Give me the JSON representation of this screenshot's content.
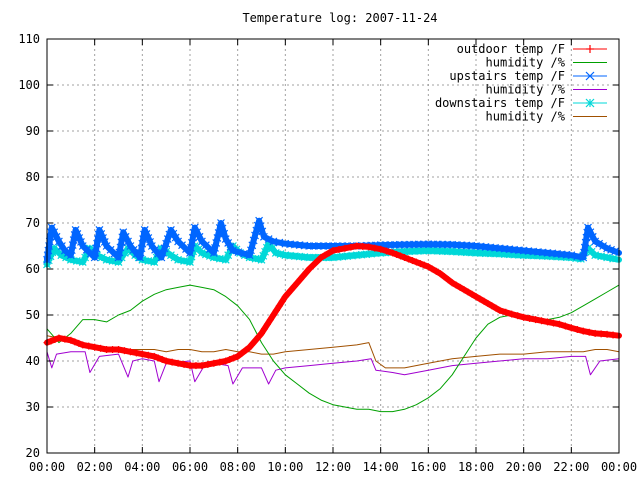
{
  "chart_data": {
    "type": "line",
    "title": "Temperature log: 2007-11-24",
    "xlabel": "",
    "ylabel": "",
    "ylim": [
      20,
      110
    ],
    "yticks": [
      20,
      30,
      40,
      50,
      60,
      70,
      80,
      90,
      100,
      110
    ],
    "xlim_hours": [
      0,
      24
    ],
    "xticks": [
      "00:00",
      "02:00",
      "04:00",
      "06:00",
      "08:00",
      "10:00",
      "12:00",
      "14:00",
      "16:00",
      "18:00",
      "20:00",
      "22:00",
      "00:00"
    ],
    "grid": true,
    "legend_position": "top-right",
    "series": [
      {
        "name": "outdoor temp /F",
        "color": "#ff0000",
        "marker": "plus",
        "x_hours": [
          0,
          0.5,
          1,
          1.5,
          2,
          2.5,
          3,
          3.5,
          4,
          4.5,
          5,
          5.5,
          6,
          6.5,
          7,
          7.5,
          8,
          8.5,
          9,
          9.5,
          10,
          10.5,
          11,
          11.5,
          12,
          12.5,
          13,
          13.5,
          14,
          14.5,
          15,
          15.5,
          16,
          16.5,
          17,
          17.5,
          18,
          18.5,
          19,
          19.5,
          20,
          20.5,
          21,
          21.5,
          22,
          22.5,
          23,
          23.5,
          24
        ],
        "values": [
          44,
          45,
          44.5,
          43.5,
          43,
          42.5,
          42.5,
          42,
          41.5,
          41,
          40,
          39.5,
          39,
          39,
          39.5,
          40,
          41,
          43,
          46,
          50,
          54,
          57,
          60,
          62.5,
          64,
          64.5,
          65,
          64.8,
          64.3,
          63.5,
          62.5,
          61.5,
          60.5,
          59,
          57,
          55.5,
          54,
          52.5,
          51,
          50.2,
          49.5,
          49,
          48.5,
          48,
          47.2,
          46.5,
          46,
          45.8,
          45.5
        ]
      },
      {
        "name": "humidity /%",
        "color": "#00a000",
        "marker": "none",
        "x_hours": [
          0,
          0.5,
          1,
          1.5,
          2,
          2.5,
          3,
          3.5,
          4,
          4.5,
          5,
          5.5,
          6,
          6.5,
          7,
          7.5,
          8,
          8.5,
          9,
          9.5,
          10,
          10.5,
          11,
          11.5,
          12,
          12.5,
          13,
          13.5,
          14,
          14.5,
          15,
          15.5,
          16,
          16.5,
          17,
          17.5,
          18,
          18.5,
          19,
          19.5,
          20,
          20.5,
          21,
          21.5,
          22,
          22.5,
          23,
          23.5,
          24
        ],
        "values": [
          47,
          44,
          46,
          49,
          49,
          48.5,
          50,
          51,
          53,
          54.5,
          55.5,
          56,
          56.5,
          56,
          55.5,
          54,
          52,
          49,
          44,
          40,
          37,
          35,
          33,
          31.5,
          30.5,
          30,
          29.5,
          29.5,
          29,
          29,
          29.5,
          30.5,
          32,
          34,
          37,
          41,
          45,
          48,
          49.5,
          50,
          50,
          49.5,
          49,
          49.5,
          50.5,
          52,
          53.5,
          55,
          56.5
        ]
      },
      {
        "name": "upstairs temp /F",
        "color": "#0066ff",
        "marker": "cross",
        "x_hours": [
          0,
          0.2,
          0.5,
          0.75,
          1,
          1.2,
          1.5,
          2,
          2.2,
          2.5,
          3,
          3.2,
          3.5,
          3.9,
          4.1,
          4.4,
          4.8,
          5.2,
          5.5,
          6.0,
          6.2,
          6.5,
          7,
          7.3,
          7.5,
          7.8,
          8.5,
          8.9,
          9.1,
          9.5,
          10,
          11,
          12,
          13,
          14,
          15,
          16,
          17,
          18,
          19,
          20,
          21,
          22,
          22.5,
          22.7,
          23,
          23.5,
          24
        ],
        "values": [
          62,
          69,
          66,
          64,
          63,
          68.5,
          65,
          62.5,
          68.5,
          65,
          62.5,
          68,
          65,
          62.5,
          68.5,
          65,
          62.5,
          68.5,
          66,
          63.5,
          69,
          66,
          63.5,
          70,
          66.5,
          64,
          63,
          70.5,
          67,
          66,
          65.5,
          65,
          65,
          65,
          65.2,
          65.3,
          65.4,
          65.3,
          65,
          64.5,
          64,
          63.5,
          63,
          62.5,
          69,
          66,
          64.5,
          63.5
        ]
      },
      {
        "name": "humidity /%",
        "color": "#a000d0",
        "marker": "none",
        "x_hours": [
          0,
          0.2,
          0.4,
          1,
          1.6,
          1.8,
          2.2,
          3,
          3.4,
          3.6,
          4,
          4.5,
          4.7,
          5,
          6,
          6.2,
          6.6,
          7,
          7.6,
          7.8,
          8.2,
          9,
          9.3,
          9.6,
          10,
          11,
          12,
          13,
          13.6,
          13.8,
          14.5,
          15,
          16,
          17,
          18,
          19,
          20,
          21,
          22,
          22.6,
          22.8,
          23.2,
          24
        ],
        "values": [
          42,
          38.5,
          41.5,
          42,
          42,
          37.5,
          41,
          41.5,
          36.5,
          40,
          40.5,
          40,
          35.5,
          39.5,
          40,
          35.5,
          39,
          39.5,
          39,
          35,
          38.5,
          38.5,
          35,
          38,
          38.5,
          39,
          39.5,
          40,
          40.5,
          38,
          37.5,
          37,
          38,
          39,
          39.5,
          40,
          40.5,
          40.5,
          41,
          41,
          37,
          40,
          40.5
        ]
      },
      {
        "name": "downstairs temp /F",
        "color": "#00d8d8",
        "marker": "star",
        "x_hours": [
          0,
          0.3,
          0.6,
          1,
          1.5,
          1.8,
          2.1,
          2.5,
          3,
          3.4,
          3.7,
          4,
          4.5,
          4.8,
          5.2,
          5.5,
          6,
          6.2,
          6.5,
          7,
          7.5,
          7.8,
          8.1,
          8.5,
          9,
          9.3,
          9.6,
          10,
          11,
          12,
          13,
          14,
          15,
          16,
          17,
          18,
          19,
          20,
          21,
          22,
          22.4,
          22.7,
          23,
          23.5,
          24
        ],
        "values": [
          61,
          64.5,
          63,
          62,
          61.5,
          64.5,
          63,
          62,
          61.5,
          64.5,
          63,
          62,
          61.5,
          64.5,
          63,
          62,
          61.5,
          65,
          63.5,
          62.5,
          62,
          65,
          63.5,
          62.5,
          62,
          65.5,
          63.5,
          63,
          62.5,
          62.5,
          63,
          63.5,
          63.8,
          64,
          63.8,
          63.5,
          63.3,
          63,
          62.8,
          62.5,
          62.2,
          64.5,
          63,
          62.5,
          62
        ]
      },
      {
        "name": "humidity /%",
        "color": "#a05000",
        "marker": "none",
        "x_hours": [
          0,
          0.5,
          1,
          1.5,
          2,
          2.5,
          3,
          3.5,
          4,
          4.5,
          5,
          5.5,
          6,
          6.5,
          7,
          7.5,
          8,
          8.5,
          9,
          9.5,
          10,
          11,
          12,
          13,
          13.5,
          13.8,
          14.2,
          15,
          16,
          17,
          18,
          19,
          20,
          21,
          22,
          22.5,
          23,
          23.5,
          24
        ],
        "values": [
          45.5,
          45,
          45,
          44,
          43.5,
          43,
          43,
          42.5,
          42.5,
          42.5,
          42,
          42.5,
          42.5,
          42,
          42,
          42.5,
          42,
          42,
          41.5,
          41.5,
          42,
          42.5,
          43,
          43.5,
          44,
          40,
          38.5,
          38.5,
          39.5,
          40.5,
          41,
          41.5,
          41.5,
          42,
          42,
          42,
          42.5,
          42.5,
          42
        ]
      }
    ]
  }
}
